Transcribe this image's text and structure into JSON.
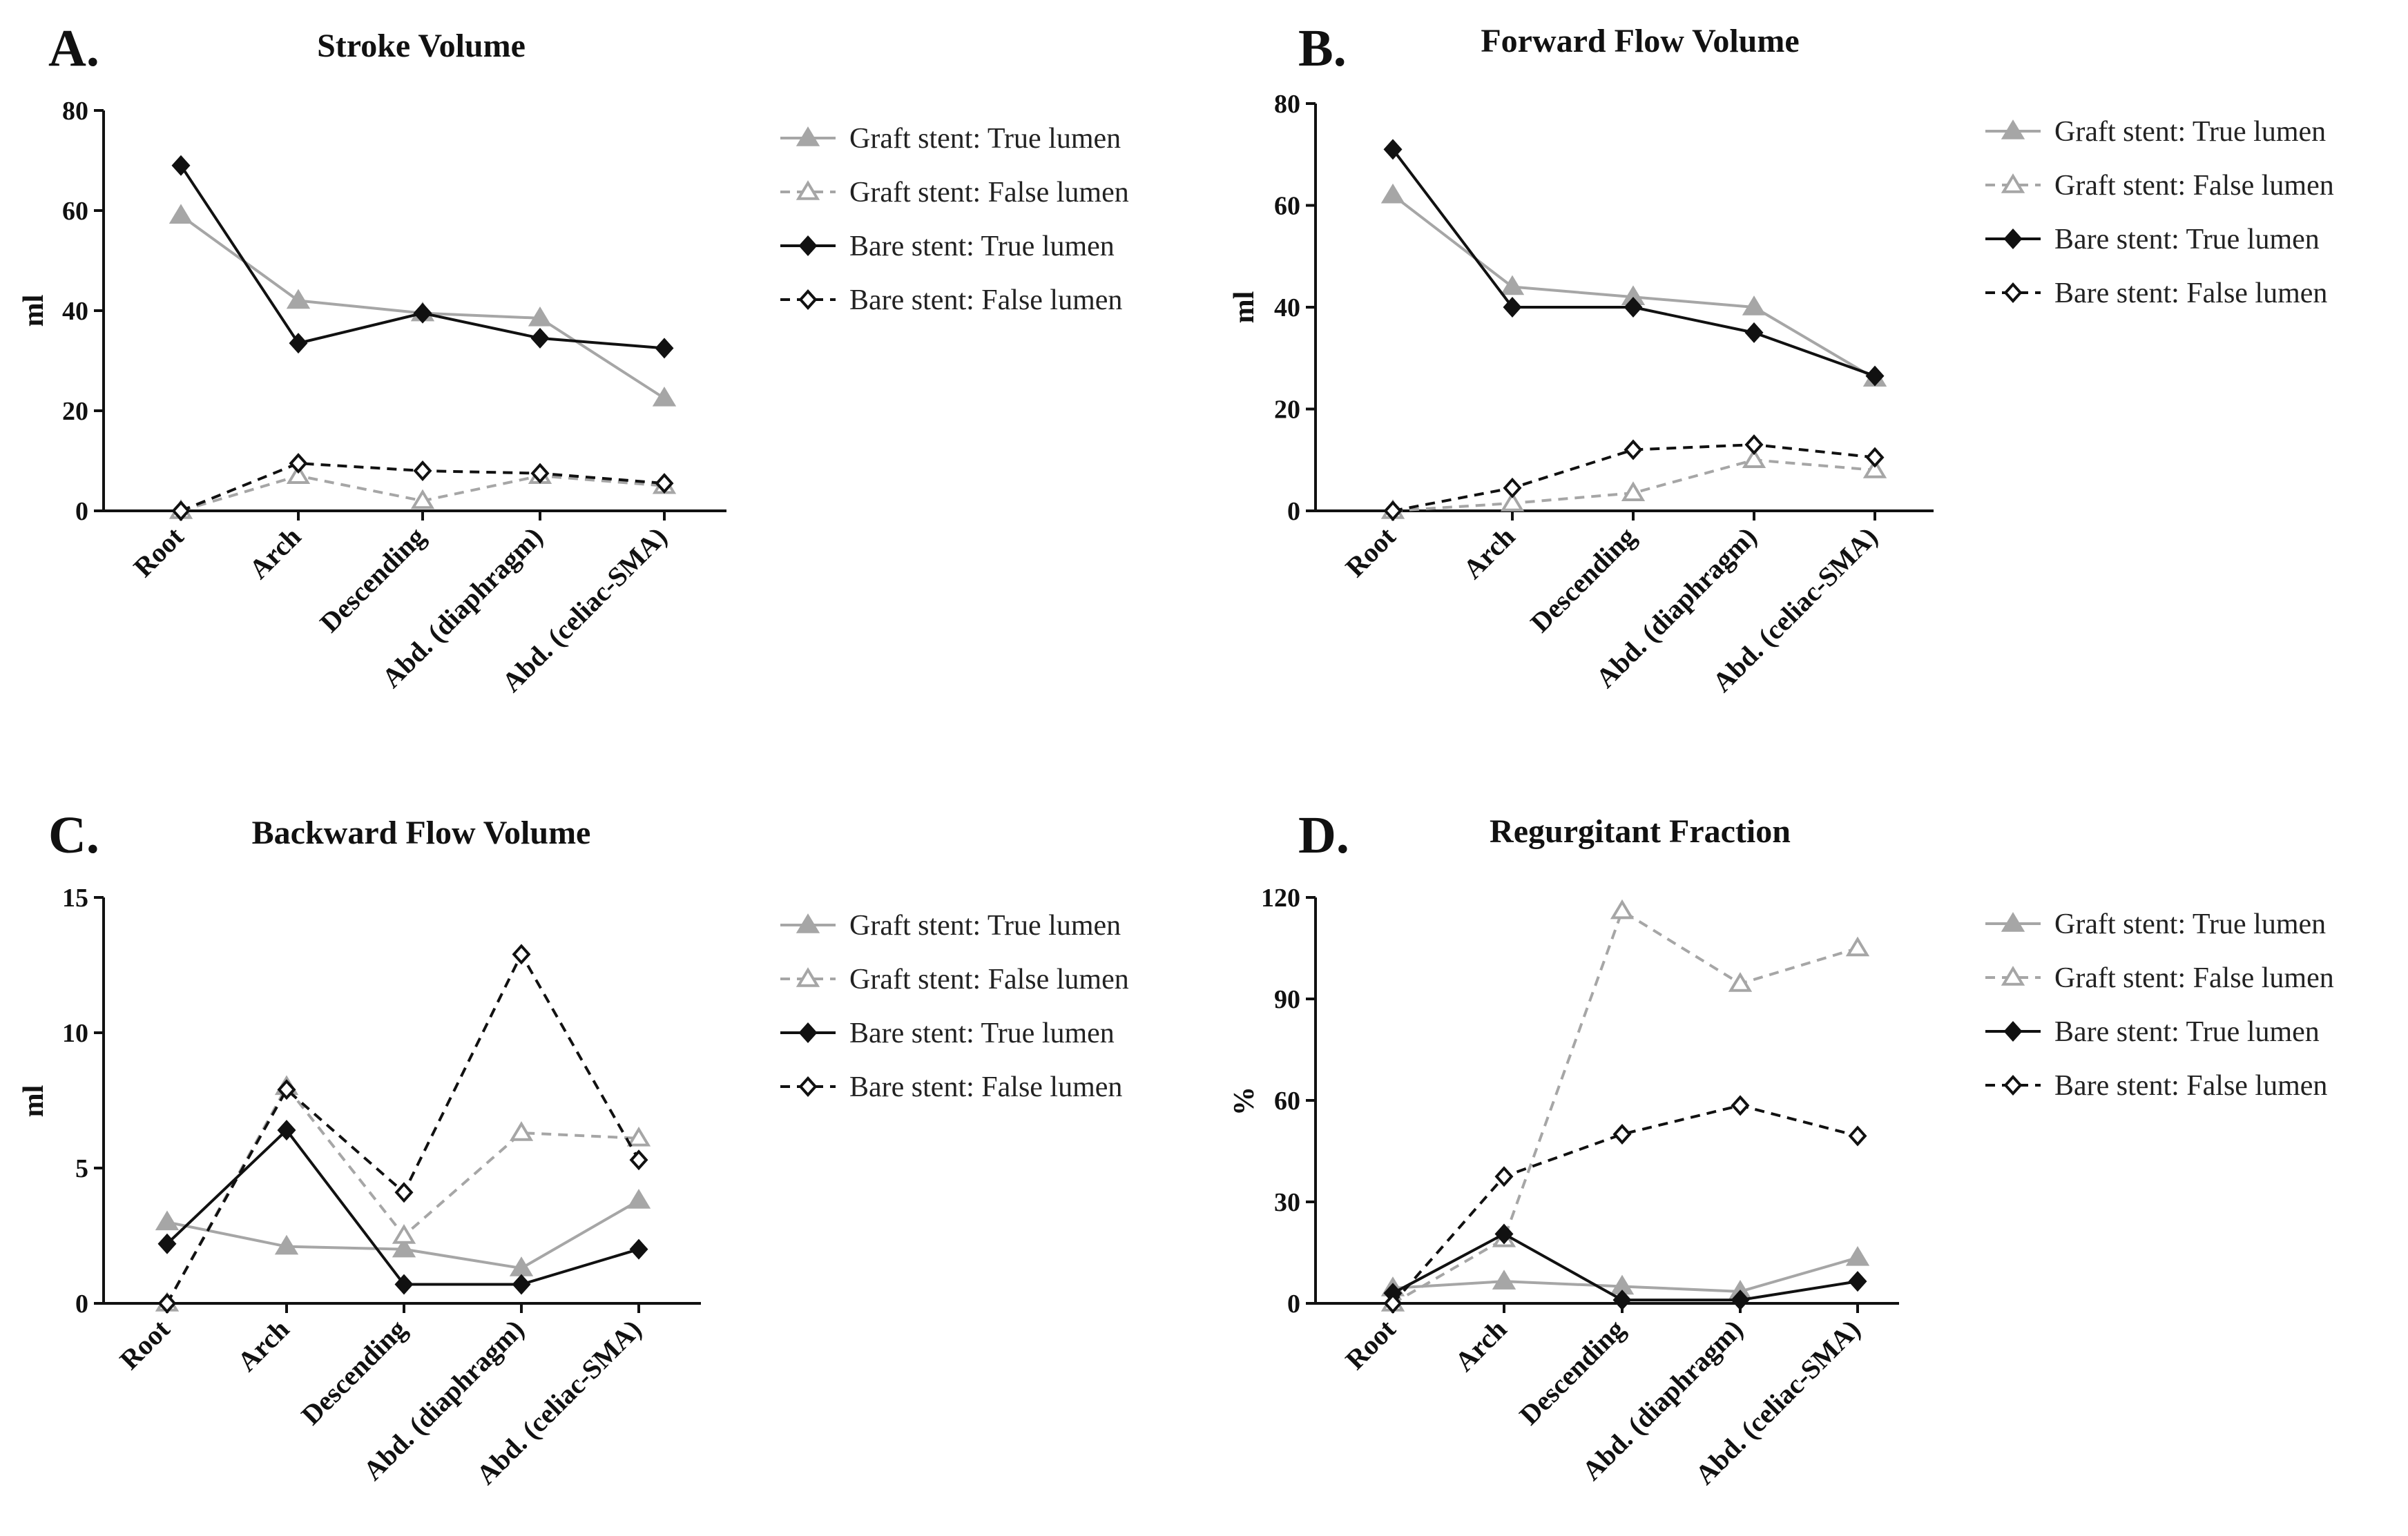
{
  "chart_data": [
    {
      "type": "line",
      "panel": "A.",
      "title": "Stroke Volume",
      "xlabel": "",
      "ylabel": "ml",
      "ylim": [
        0,
        80
      ],
      "yticks": [
        0,
        20,
        40,
        60,
        80
      ],
      "categories": [
        "Root",
        "Arch",
        "Descending",
        "Abd. (diaphragm)",
        "Abd. (celiac-SMA)"
      ],
      "grid": false,
      "legend_position": "right",
      "series": [
        {
          "name": "Graft stent: True lumen",
          "values": [
            59,
            42,
            39.5,
            38.5,
            22.5
          ]
        },
        {
          "name": "Graft stent: False lumen",
          "values": [
            0,
            7,
            2,
            7,
            5
          ]
        },
        {
          "name": "Bare stent: True lumen",
          "values": [
            69,
            33.5,
            39.5,
            34.5,
            32.5
          ]
        },
        {
          "name": "Bare stent: False lumen",
          "values": [
            0,
            9.5,
            8,
            7.5,
            5.5
          ]
        }
      ]
    },
    {
      "type": "line",
      "panel": "B.",
      "title": "Forward Flow Volume",
      "xlabel": "",
      "ylabel": "ml",
      "ylim": [
        0,
        80
      ],
      "yticks": [
        0,
        20,
        40,
        60,
        80
      ],
      "categories": [
        "Root",
        "Arch",
        "Descending",
        "Abd. (diaphragm)",
        "Abd. (celiac-SMA)"
      ],
      "grid": false,
      "legend_position": "right",
      "series": [
        {
          "name": "Graft stent: True lumen",
          "values": [
            62,
            44,
            42,
            40,
            26
          ]
        },
        {
          "name": "Graft stent: False lumen",
          "values": [
            0,
            1.5,
            3.5,
            10,
            8
          ]
        },
        {
          "name": "Bare stent: True lumen",
          "values": [
            71,
            40,
            40,
            35,
            26.5
          ]
        },
        {
          "name": "Bare stent: False lumen",
          "values": [
            0,
            4.5,
            12,
            13,
            10.5
          ]
        }
      ]
    },
    {
      "type": "line",
      "panel": "C.",
      "title": "Backward Flow Volume",
      "xlabel": "",
      "ylabel": "ml",
      "ylim": [
        0,
        15
      ],
      "yticks": [
        0,
        5,
        10,
        15
      ],
      "categories": [
        "Root",
        "Arch",
        "Descending",
        "Abd. (diaphragm)",
        "Abd. (celiac-SMA)"
      ],
      "grid": false,
      "legend_position": "right",
      "series": [
        {
          "name": "Graft stent: True lumen",
          "values": [
            3,
            2.1,
            2,
            1.3,
            3.8
          ]
        },
        {
          "name": "Graft stent: False lumen",
          "values": [
            0,
            8,
            2.5,
            6.3,
            6.1
          ]
        },
        {
          "name": "Bare stent: True lumen",
          "values": [
            2.2,
            6.4,
            0.7,
            0.7,
            2
          ]
        },
        {
          "name": "Bare stent: False lumen",
          "values": [
            0,
            7.9,
            4.1,
            12.9,
            5.3
          ]
        }
      ]
    },
    {
      "type": "line",
      "panel": "D.",
      "title": "Regurgitant Fraction",
      "xlabel": "",
      "ylabel": "%",
      "ylim": [
        0,
        120
      ],
      "yticks": [
        0,
        30,
        60,
        90,
        120
      ],
      "categories": [
        "Root",
        "Arch",
        "Descending",
        "Abd. (diaphragm)",
        "Abd. (celiac-SMA)"
      ],
      "grid": false,
      "legend_position": "right",
      "series": [
        {
          "name": "Graft stent: True lumen",
          "values": [
            4.5,
            6.5,
            5,
            3.5,
            13.5
          ]
        },
        {
          "name": "Graft stent: False lumen",
          "values": [
            0,
            19,
            116,
            94.5,
            105
          ]
        },
        {
          "name": "Bare stent: True lumen",
          "values": [
            3,
            20.5,
            1,
            1,
            6.5
          ]
        },
        {
          "name": "Bare stent: False lumen",
          "values": [
            0,
            37.5,
            50,
            58.5,
            49.5
          ]
        }
      ]
    }
  ],
  "styles": {
    "graft_color": "#a6a6a6",
    "bare_color": "#111111",
    "axis_color": "#111111",
    "series_styles": [
      {
        "color": "#a6a6a6",
        "dashed": false,
        "marker": "triangle-filled"
      },
      {
        "color": "#a6a6a6",
        "dashed": true,
        "marker": "triangle-open"
      },
      {
        "color": "#111111",
        "dashed": false,
        "marker": "diamond-filled"
      },
      {
        "color": "#111111",
        "dashed": true,
        "marker": "diamond-open"
      }
    ]
  }
}
